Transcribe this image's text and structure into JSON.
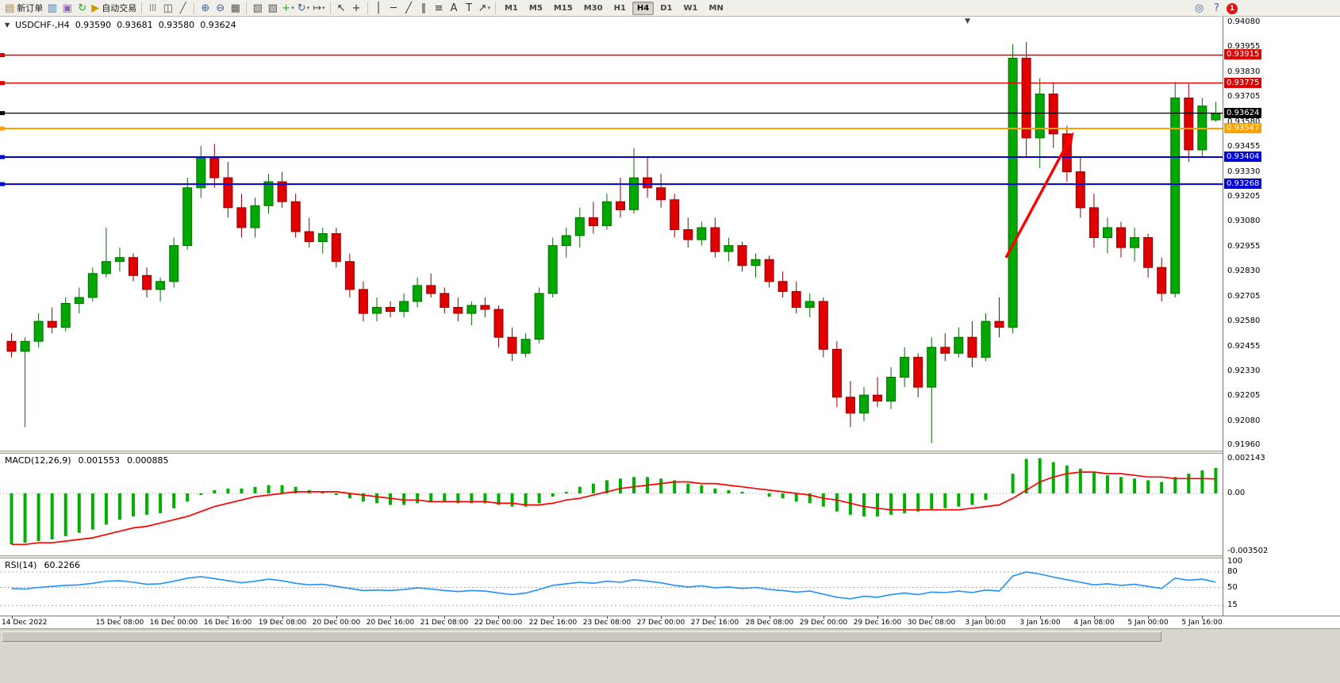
{
  "toolbar": {
    "items": [
      {
        "type": "button",
        "name": "new-order-button",
        "icon": "new-order-icon",
        "glyph": "▤",
        "glyph_color": "#b5842e",
        "label": "新订单"
      },
      {
        "type": "icon",
        "name": "charts-icon",
        "glyph": "▥",
        "glyph_color": "#4a7ab5"
      },
      {
        "type": "icon",
        "name": "profiles-icon",
        "glyph": "▣",
        "glyph_color": "#8a63b5"
      },
      {
        "type": "icon",
        "name": "refresh-icon",
        "glyph": "↻",
        "glyph_color": "#2f9e2f"
      },
      {
        "type": "button",
        "name": "autotrading-button",
        "icon": "autotrading-icon",
        "glyph": "▶",
        "glyph_color": "#cc9a00",
        "label": "自动交易"
      },
      {
        "type": "sep"
      },
      {
        "type": "icon",
        "name": "bar-chart-icon",
        "glyph": "|||",
        "glyph_color": "#555555"
      },
      {
        "type": "icon",
        "name": "candlestick-chart-icon",
        "glyph": "◫",
        "glyph_color": "#555555"
      },
      {
        "type": "icon",
        "name": "line-chart-icon",
        "glyph": "╱",
        "glyph_color": "#555555"
      },
      {
        "type": "sep"
      },
      {
        "type": "icon",
        "name": "zoom-in-icon",
        "glyph": "⊕",
        "glyph_color": "#39629c"
      },
      {
        "type": "icon",
        "name": "zoom-out-icon",
        "glyph": "⊖",
        "glyph_color": "#39629c"
      },
      {
        "type": "icon",
        "name": "tile-windows-icon",
        "glyph": "▦",
        "glyph_color": "#555555"
      },
      {
        "type": "sep"
      },
      {
        "type": "icon",
        "name": "cascade-windows-icon",
        "glyph": "▧",
        "glyph_color": "#555555"
      },
      {
        "type": "icon",
        "name": "arrange-windows-icon",
        "glyph": "▨",
        "glyph_color": "#555555"
      },
      {
        "type": "dropdown",
        "name": "new-chart-icon",
        "glyph": "+",
        "glyph_color": "#2f9e2f"
      },
      {
        "type": "dropdown",
        "name": "chart-cycle-icon",
        "glyph": "↻",
        "glyph_color": "#39629c"
      },
      {
        "type": "dropdown",
        "name": "chart-shift-icon",
        "glyph": "↦",
        "glyph_color": "#555555"
      },
      {
        "type": "sep"
      },
      {
        "type": "icon",
        "name": "cursor-icon",
        "glyph": "↖",
        "glyph_color": "#333333"
      },
      {
        "type": "icon",
        "name": "crosshair-icon",
        "glyph": "+",
        "glyph_color": "#333333"
      },
      {
        "type": "sep"
      },
      {
        "type": "icon",
        "name": "vertical-line-icon",
        "glyph": "│",
        "glyph_color": "#333333"
      },
      {
        "type": "icon",
        "name": "horizontal-line-icon",
        "glyph": "─",
        "glyph_color": "#333333"
      },
      {
        "type": "icon",
        "name": "trendline-icon",
        "glyph": "╱",
        "glyph_color": "#333333"
      },
      {
        "type": "icon",
        "name": "channel-icon",
        "glyph": "∥",
        "glyph_color": "#333333"
      },
      {
        "type": "icon",
        "name": "fibonacci-icon",
        "glyph": "≡",
        "glyph_color": "#333333"
      },
      {
        "type": "icon",
        "name": "text-icon",
        "glyph": "A",
        "glyph_color": "#333333"
      },
      {
        "type": "icon",
        "name": "text-label-icon",
        "glyph": "T",
        "glyph_color": "#333333"
      },
      {
        "type": "dropdown",
        "name": "arrows-icon",
        "glyph": "↗",
        "glyph_color": "#333333"
      },
      {
        "type": "sep"
      }
    ],
    "timeframes": [
      {
        "label": "M1"
      },
      {
        "label": "M5"
      },
      {
        "label": "M15"
      },
      {
        "label": "M30"
      },
      {
        "label": "H1"
      },
      {
        "label": "H4",
        "active": true
      },
      {
        "label": "D1"
      },
      {
        "label": "W1"
      },
      {
        "label": "MN"
      }
    ],
    "right_icons": [
      {
        "name": "search-icon",
        "glyph": "◎"
      },
      {
        "name": "help-icon",
        "glyph": "?"
      }
    ],
    "notification_count": "1"
  },
  "chart": {
    "header": {
      "toggle_glyph": "▼",
      "symbol": "USDCHF-,H4",
      "open": "0.93590",
      "high": "0.93681",
      "low": "0.93580",
      "close": "0.93624"
    },
    "macd_panel": {
      "label": "MACD(12,26,9)",
      "main_value": "0.001553",
      "signal_value": "0.000885"
    },
    "rsi_panel": {
      "label": "RSI(14)",
      "value": "60.2266"
    },
    "shift_marker_glyph": "▼"
  },
  "chart_data": {
    "type": "candlestick",
    "symbol": "USDCHF-",
    "timeframe": "H4",
    "current_bar": {
      "open": 0.9359,
      "high": 0.93681,
      "low": 0.9358,
      "close": 0.93624
    },
    "price_axis_range": {
      "max": 0.9408,
      "min": 0.9196
    },
    "price_axis_ticks": [
      "0.94080",
      "0.93955",
      "0.93830",
      "0.93705",
      "0.93580",
      "0.93455",
      "0.93330",
      "0.93205",
      "0.93080",
      "0.92955",
      "0.92830",
      "0.92705",
      "0.92580",
      "0.92455",
      "0.92330",
      "0.92205",
      "0.92080",
      "0.91960"
    ],
    "time_labels": [
      {
        "text": "14 Dec 2022",
        "bar": 0
      },
      {
        "text": "15 Dec 08:00",
        "bar": 8
      },
      {
        "text": "16 Dec 00:00",
        "bar": 12
      },
      {
        "text": "16 Dec 16:00",
        "bar": 16
      },
      {
        "text": "19 Dec 08:00",
        "bar": 20
      },
      {
        "text": "20 Dec 00:00",
        "bar": 24
      },
      {
        "text": "20 Dec 16:00",
        "bar": 28
      },
      {
        "text": "21 Dec 08:00",
        "bar": 32
      },
      {
        "text": "22 Dec 00:00",
        "bar": 36
      },
      {
        "text": "22 Dec 16:00",
        "bar": 40
      },
      {
        "text": "23 Dec 08:00",
        "bar": 44
      },
      {
        "text": "27 Dec 00:00",
        "bar": 48
      },
      {
        "text": "27 Dec 16:00",
        "bar": 52
      },
      {
        "text": "28 Dec 08:00",
        "bar": 56
      },
      {
        "text": "29 Dec 00:00",
        "bar": 60
      },
      {
        "text": "29 Dec 16:00",
        "bar": 64
      },
      {
        "text": "30 Dec 08:00",
        "bar": 68
      },
      {
        "text": "3 Jan 00:00",
        "bar": 72
      },
      {
        "text": "3 Jan 16:00",
        "bar": 76
      },
      {
        "text": "4 Jan 08:00",
        "bar": 80
      },
      {
        "text": "5 Jan 00:00",
        "bar": 84
      },
      {
        "text": "5 Jan 16:00",
        "bar": 88
      }
    ],
    "candles": [
      [
        0.9248,
        0.9252,
        0.924,
        0.9243
      ],
      [
        0.9243,
        0.925,
        0.9205,
        0.9248
      ],
      [
        0.9248,
        0.9262,
        0.9245,
        0.9258
      ],
      [
        0.9258,
        0.9265,
        0.9252,
        0.9255
      ],
      [
        0.9255,
        0.927,
        0.9253,
        0.9267
      ],
      [
        0.9267,
        0.9275,
        0.9262,
        0.927
      ],
      [
        0.927,
        0.9285,
        0.9268,
        0.9282
      ],
      [
        0.9282,
        0.9305,
        0.928,
        0.9288
      ],
      [
        0.9288,
        0.9295,
        0.9283,
        0.929
      ],
      [
        0.929,
        0.9292,
        0.9278,
        0.9281
      ],
      [
        0.9281,
        0.9285,
        0.927,
        0.9274
      ],
      [
        0.9274,
        0.928,
        0.9268,
        0.9278
      ],
      [
        0.9278,
        0.93,
        0.9275,
        0.9296
      ],
      [
        0.9296,
        0.933,
        0.9294,
        0.9325
      ],
      [
        0.9325,
        0.9346,
        0.932,
        0.934
      ],
      [
        0.934,
        0.9347,
        0.9325,
        0.933
      ],
      [
        0.933,
        0.9338,
        0.931,
        0.9315
      ],
      [
        0.9315,
        0.9322,
        0.93,
        0.9305
      ],
      [
        0.9305,
        0.932,
        0.93,
        0.9316
      ],
      [
        0.9316,
        0.9332,
        0.9312,
        0.9328
      ],
      [
        0.9328,
        0.9333,
        0.9315,
        0.9318
      ],
      [
        0.9318,
        0.9322,
        0.93,
        0.9303
      ],
      [
        0.9303,
        0.931,
        0.9295,
        0.9298
      ],
      [
        0.9298,
        0.9305,
        0.9292,
        0.9302
      ],
      [
        0.9302,
        0.9305,
        0.9285,
        0.9288
      ],
      [
        0.9288,
        0.9292,
        0.927,
        0.9274
      ],
      [
        0.9274,
        0.9278,
        0.9258,
        0.9262
      ],
      [
        0.9262,
        0.927,
        0.9258,
        0.9265
      ],
      [
        0.9265,
        0.9268,
        0.926,
        0.9263
      ],
      [
        0.9263,
        0.9272,
        0.926,
        0.9268
      ],
      [
        0.9268,
        0.928,
        0.9265,
        0.9276
      ],
      [
        0.9276,
        0.9282,
        0.927,
        0.9272
      ],
      [
        0.9272,
        0.9275,
        0.9262,
        0.9265
      ],
      [
        0.9265,
        0.927,
        0.9258,
        0.9262
      ],
      [
        0.9262,
        0.9268,
        0.9256,
        0.9266
      ],
      [
        0.9266,
        0.927,
        0.926,
        0.9264
      ],
      [
        0.9264,
        0.9266,
        0.9245,
        0.925
      ],
      [
        0.925,
        0.9255,
        0.9238,
        0.9242
      ],
      [
        0.9242,
        0.9252,
        0.924,
        0.9249
      ],
      [
        0.9249,
        0.9275,
        0.9247,
        0.9272
      ],
      [
        0.9272,
        0.93,
        0.927,
        0.9296
      ],
      [
        0.9296,
        0.9305,
        0.929,
        0.9301
      ],
      [
        0.9301,
        0.9315,
        0.9295,
        0.931
      ],
      [
        0.931,
        0.9318,
        0.9302,
        0.9306
      ],
      [
        0.9306,
        0.9322,
        0.9304,
        0.9318
      ],
      [
        0.9318,
        0.933,
        0.931,
        0.9314
      ],
      [
        0.9314,
        0.9345,
        0.9312,
        0.933
      ],
      [
        0.933,
        0.934,
        0.932,
        0.9325
      ],
      [
        0.9325,
        0.9332,
        0.9315,
        0.9319
      ],
      [
        0.9319,
        0.9322,
        0.93,
        0.9304
      ],
      [
        0.9304,
        0.931,
        0.9295,
        0.9299
      ],
      [
        0.9299,
        0.9308,
        0.9296,
        0.9305
      ],
      [
        0.9305,
        0.931,
        0.929,
        0.9293
      ],
      [
        0.9293,
        0.93,
        0.9288,
        0.9296
      ],
      [
        0.9296,
        0.9298,
        0.9283,
        0.9286
      ],
      [
        0.9286,
        0.9292,
        0.928,
        0.9289
      ],
      [
        0.9289,
        0.9291,
        0.9275,
        0.9278
      ],
      [
        0.9278,
        0.9283,
        0.927,
        0.9273
      ],
      [
        0.9273,
        0.9278,
        0.9262,
        0.9265
      ],
      [
        0.9265,
        0.9272,
        0.926,
        0.9268
      ],
      [
        0.9268,
        0.927,
        0.924,
        0.9244
      ],
      [
        0.9244,
        0.9248,
        0.9215,
        0.922
      ],
      [
        0.922,
        0.9228,
        0.9205,
        0.9212
      ],
      [
        0.9212,
        0.9225,
        0.9208,
        0.9221
      ],
      [
        0.9221,
        0.923,
        0.9215,
        0.9218
      ],
      [
        0.9218,
        0.9235,
        0.9214,
        0.923
      ],
      [
        0.923,
        0.9245,
        0.9225,
        0.924
      ],
      [
        0.924,
        0.9242,
        0.922,
        0.9225
      ],
      [
        0.9225,
        0.925,
        0.9197,
        0.9245
      ],
      [
        0.9245,
        0.9252,
        0.9238,
        0.9242
      ],
      [
        0.9242,
        0.9255,
        0.924,
        0.925
      ],
      [
        0.925,
        0.9258,
        0.9235,
        0.924
      ],
      [
        0.924,
        0.9262,
        0.9238,
        0.9258
      ],
      [
        0.9258,
        0.927,
        0.925,
        0.9255
      ],
      [
        0.9255,
        0.9397,
        0.9252,
        0.939
      ],
      [
        0.939,
        0.9398,
        0.934,
        0.935
      ],
      [
        0.935,
        0.938,
        0.9335,
        0.9372
      ],
      [
        0.9372,
        0.9378,
        0.9345,
        0.9352
      ],
      [
        0.9352,
        0.9356,
        0.9328,
        0.9333
      ],
      [
        0.9333,
        0.934,
        0.931,
        0.9315
      ],
      [
        0.9315,
        0.9322,
        0.9295,
        0.93
      ],
      [
        0.93,
        0.931,
        0.9292,
        0.9305
      ],
      [
        0.9305,
        0.9308,
        0.929,
        0.9295
      ],
      [
        0.9295,
        0.9305,
        0.9288,
        0.93
      ],
      [
        0.93,
        0.9302,
        0.928,
        0.9285
      ],
      [
        0.9285,
        0.929,
        0.9268,
        0.9272
      ],
      [
        0.9272,
        0.9378,
        0.927,
        0.937
      ],
      [
        0.937,
        0.9377,
        0.9338,
        0.9344
      ],
      [
        0.9344,
        0.937,
        0.934,
        0.9366
      ],
      [
        0.9359,
        0.93681,
        0.9358,
        0.93624
      ]
    ],
    "hlines": [
      {
        "value": 0.93915,
        "color": "#e00000",
        "label": "0.93915",
        "width": 1.4
      },
      {
        "value": 0.93775,
        "color": "#e00000",
        "label": "0.93775",
        "width": 1.4
      },
      {
        "value": 0.93624,
        "color": "#000000",
        "label": "0.93624",
        "width": 1.2
      },
      {
        "value": 0.93547,
        "color": "#ffa000",
        "label": "0.93547",
        "width": 2
      },
      {
        "value": 0.93404,
        "color": "#0000dd",
        "label": "0.93404",
        "width": 2
      },
      {
        "value": 0.93268,
        "color": "#0000dd",
        "label": "0.93268",
        "width": 2
      }
    ],
    "trend_arrow": {
      "from": {
        "bar": 73.5,
        "price": 0.929
      },
      "to": {
        "bar": 78.5,
        "price": 0.9353
      },
      "color": "#ff0000"
    },
    "macd": {
      "label": "MACD(12,26,9)",
      "scale_max": "0.002143",
      "scale_zero": "0.00",
      "scale_min": "-0.003502",
      "histogram_color": "#00b000",
      "signal_color": "#ff0000",
      "histogram": [
        -0.0031,
        -0.003,
        -0.0029,
        -0.0028,
        -0.0026,
        -0.0024,
        -0.0022,
        -0.0019,
        -0.0016,
        -0.0014,
        -0.0013,
        -0.0012,
        -0.0009,
        -0.0005,
        -0.0001,
        0.0002,
        0.0003,
        0.0003,
        0.0004,
        0.0005,
        0.0005,
        0.0004,
        0.0002,
        0.0001,
        -0.0001,
        -0.0003,
        -0.0005,
        -0.0006,
        -0.0007,
        -0.0007,
        -0.0006,
        -0.0005,
        -0.0005,
        -0.0006,
        -0.0006,
        -0.0006,
        -0.0007,
        -0.0008,
        -0.0008,
        -0.0006,
        -0.0002,
        0.0001,
        0.0004,
        0.0006,
        0.0008,
        0.0009,
        0.001,
        0.001,
        0.0009,
        0.0008,
        0.0006,
        0.0005,
        0.0003,
        0.0002,
        0.0001,
        0.0,
        -0.0002,
        -0.0003,
        -0.0005,
        -0.0006,
        -0.0008,
        -0.0011,
        -0.0013,
        -0.0014,
        -0.0014,
        -0.0013,
        -0.0012,
        -0.0011,
        -0.001,
        -0.0009,
        -0.0008,
        -0.0007,
        -0.0004,
        0.0,
        0.0012,
        0.0021,
        0.002143,
        0.0019,
        0.0017,
        0.0015,
        0.0013,
        0.0011,
        0.001,
        0.0009,
        0.0008,
        0.0007,
        0.001,
        0.0012,
        0.0014,
        0.001553
      ],
      "signal": [
        -0.0031,
        -0.0031,
        -0.003,
        -0.003,
        -0.0029,
        -0.0028,
        -0.0027,
        -0.0025,
        -0.0023,
        -0.0021,
        -0.002,
        -0.0018,
        -0.0016,
        -0.0014,
        -0.0011,
        -0.0008,
        -0.0006,
        -0.0004,
        -0.0002,
        -0.0001,
        0.0,
        0.0001,
        0.0001,
        0.0001,
        0.0001,
        0.0,
        -0.0001,
        -0.0002,
        -0.0003,
        -0.0004,
        -0.0004,
        -0.0005,
        -0.0005,
        -0.0005,
        -0.0005,
        -0.0005,
        -0.0006,
        -0.0006,
        -0.0007,
        -0.0007,
        -0.0006,
        -0.0004,
        -0.0003,
        -0.0001,
        0.0001,
        0.0003,
        0.0004,
        0.0005,
        0.0006,
        0.0007,
        0.0007,
        0.0006,
        0.0006,
        0.0005,
        0.0004,
        0.0003,
        0.0002,
        0.0001,
        0.0,
        -0.0001,
        -0.0003,
        -0.0004,
        -0.0006,
        -0.0008,
        -0.0009,
        -0.001,
        -0.001,
        -0.001,
        -0.001,
        -0.001,
        -0.001,
        -0.0009,
        -0.0008,
        -0.0007,
        -0.0003,
        0.0002,
        0.0007,
        0.001,
        0.0012,
        0.0013,
        0.0013,
        0.0012,
        0.0012,
        0.0011,
        0.001,
        0.001,
        0.0009,
        0.0009,
        0.0009,
        0.000885
      ]
    },
    "rsi": {
      "label": "RSI(14)",
      "levels": [
        "100",
        "80",
        "50",
        "15"
      ],
      "line_color": "#1e90ff",
      "values": [
        48,
        47,
        50,
        52,
        54,
        55,
        58,
        62,
        63,
        60,
        56,
        57,
        62,
        68,
        71,
        67,
        63,
        59,
        62,
        66,
        63,
        58,
        55,
        56,
        52,
        48,
        44,
        45,
        44,
        46,
        49,
        47,
        44,
        42,
        44,
        43,
        39,
        36,
        39,
        46,
        54,
        57,
        60,
        58,
        62,
        60,
        65,
        62,
        59,
        54,
        51,
        53,
        49,
        51,
        48,
        50,
        46,
        44,
        41,
        43,
        37,
        31,
        28,
        33,
        31,
        36,
        39,
        36,
        41,
        40,
        43,
        40,
        45,
        43,
        72,
        80,
        76,
        70,
        65,
        60,
        55,
        57,
        54,
        56,
        52,
        48,
        68,
        64,
        66,
        60.2266
      ]
    },
    "colors": {
      "up": "#00a800",
      "up_border": "#006f00",
      "down": "#e00000",
      "down_border": "#8f0000",
      "background": "#ffffff"
    },
    "grid": false,
    "legend": "none"
  }
}
